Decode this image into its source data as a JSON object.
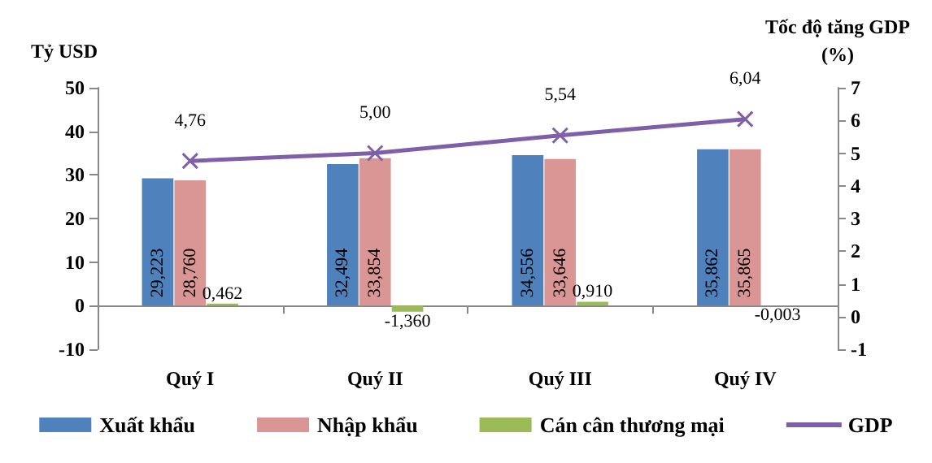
{
  "chart_data": {
    "type": "bar",
    "ylabel": "Tỷ USD",
    "y2label": "Tốc độ tăng GDP\n(%)",
    "categories": [
      "Quý I",
      "Quý II",
      "Quý III",
      "Quý IV"
    ],
    "series": [
      {
        "name": "Xuất khẩu",
        "color": "#4f81bd",
        "values": [
          29.223,
          32.494,
          34.556,
          35.862
        ],
        "value_labels": [
          "29,223",
          "32,494",
          "34,556",
          "35,862"
        ]
      },
      {
        "name": "Nhập khẩu",
        "color": "#d99694",
        "values": [
          28.76,
          33.854,
          33.646,
          35.865
        ],
        "value_labels": [
          "28,760",
          "33,854",
          "33,646",
          "35,865"
        ]
      },
      {
        "name": "Cán cân thương mại",
        "color": "#9bbb59",
        "values": [
          0.462,
          -1.36,
          0.91,
          -0.003
        ],
        "value_labels": [
          "0,462",
          "-1,360",
          "0,910",
          "-0,003"
        ]
      },
      {
        "name": "GDP",
        "type": "line",
        "axis": "y2",
        "color": "#7f5fa8",
        "marker": "cross",
        "values": [
          4.76,
          5.0,
          5.54,
          6.04
        ],
        "value_labels": [
          "4,76",
          "5,00",
          "5,54",
          "6,04"
        ]
      }
    ],
    "ylim": [
      -10,
      50
    ],
    "yticks": [
      -10,
      0,
      10,
      20,
      30,
      40,
      50
    ],
    "y2lim": [
      -1,
      7
    ],
    "y2ticks": [
      -1,
      0,
      1,
      2,
      3,
      4,
      5,
      6,
      7
    ],
    "legend": "bottom"
  }
}
